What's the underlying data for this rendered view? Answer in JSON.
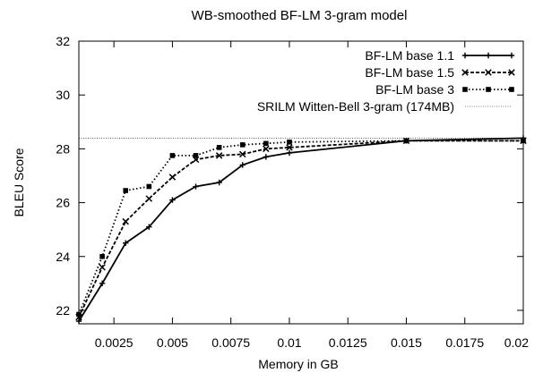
{
  "chart_data": {
    "type": "line",
    "title": "WB-smoothed BF-LM 3-gram model",
    "xlabel": "Memory in GB",
    "ylabel": "BLEU Score",
    "xlim": [
      0.001,
      0.02
    ],
    "ylim": [
      21.5,
      32
    ],
    "xticks": [
      "0.0025",
      "0.005",
      "0.0075",
      "0.01",
      "0.0125",
      "0.015",
      "0.0175",
      "0.02"
    ],
    "xtick_values": [
      0.0025,
      0.005,
      0.0075,
      0.01,
      0.0125,
      0.015,
      0.0175,
      0.02
    ],
    "yticks": [
      "22",
      "24",
      "26",
      "28",
      "30",
      "32"
    ],
    "ytick_values": [
      22,
      24,
      26,
      28,
      30,
      32
    ],
    "grid": false,
    "legend_position": "top-right",
    "series": [
      {
        "name": "BF-LM base 1.1",
        "line_style": "solid",
        "marker": "plus",
        "x": [
          0.001,
          0.002,
          0.003,
          0.004,
          0.005,
          0.006,
          0.007,
          0.008,
          0.009,
          0.01,
          0.015,
          0.02
        ],
        "y": [
          21.6,
          23.0,
          24.5,
          25.1,
          26.1,
          26.6,
          26.75,
          27.4,
          27.7,
          27.85,
          28.3,
          28.4
        ]
      },
      {
        "name": "BF-LM base 1.5",
        "line_style": "dashed",
        "marker": "cross",
        "x": [
          0.001,
          0.002,
          0.003,
          0.004,
          0.005,
          0.006,
          0.007,
          0.008,
          0.009,
          0.01,
          0.015,
          0.02
        ],
        "y": [
          21.75,
          23.6,
          25.3,
          26.15,
          26.95,
          27.6,
          27.75,
          27.8,
          28.0,
          28.05,
          28.3,
          28.3
        ]
      },
      {
        "name": "BF-LM base 3",
        "line_style": "dotted",
        "marker": "square",
        "x": [
          0.001,
          0.002,
          0.003,
          0.004,
          0.005,
          0.006,
          0.007,
          0.008,
          0.009,
          0.01,
          0.015,
          0.02
        ],
        "y": [
          21.85,
          24.0,
          26.45,
          26.6,
          27.75,
          27.75,
          28.05,
          28.15,
          28.2,
          28.25,
          28.3,
          28.3
        ]
      }
    ],
    "reference_line": {
      "name": "SRILM Witten-Bell 3-gram (174MB)",
      "line_style": "fine-dotted",
      "y": 28.4
    }
  }
}
